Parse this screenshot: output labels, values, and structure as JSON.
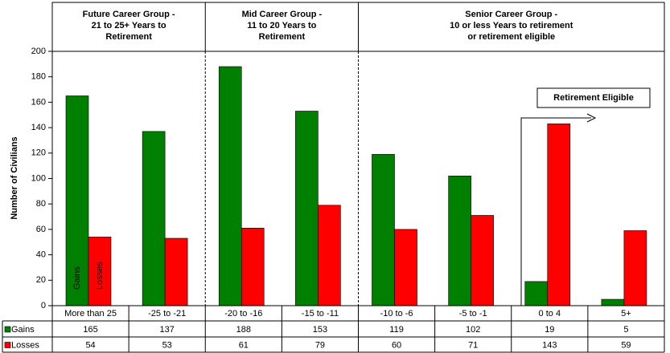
{
  "chart_data": {
    "type": "bar",
    "group_titles": [
      [
        "Future Career Group -",
        "21 to 25+ Years to",
        "Retirement"
      ],
      [
        "Mid Career Group -",
        "11 to 20 Years to",
        "Retirement"
      ],
      [
        "Senior Career Group -",
        "10 or less Years to retirement",
        "or retirement eligible"
      ]
    ],
    "y_label": "Number of Civilians",
    "categories": [
      "More than 25",
      "-25 to -21",
      "-20 to -16",
      "-15 to -11",
      "-10 to -6",
      "-5 to -1",
      "0 to 4",
      "5+"
    ],
    "series": [
      {
        "name": "Gains",
        "color": "#008000",
        "values": [
          165,
          137,
          188,
          153,
          119,
          102,
          19,
          5
        ]
      },
      {
        "name": "Losses",
        "color": "#ff0000",
        "values": [
          54,
          53,
          61,
          79,
          60,
          71,
          143,
          59
        ]
      }
    ],
    "ylim": [
      0,
      200
    ],
    "yticks": [
      0,
      20,
      40,
      60,
      80,
      100,
      120,
      140,
      160,
      180,
      200
    ],
    "grid": false,
    "annotation": "Retirement Eligible"
  }
}
